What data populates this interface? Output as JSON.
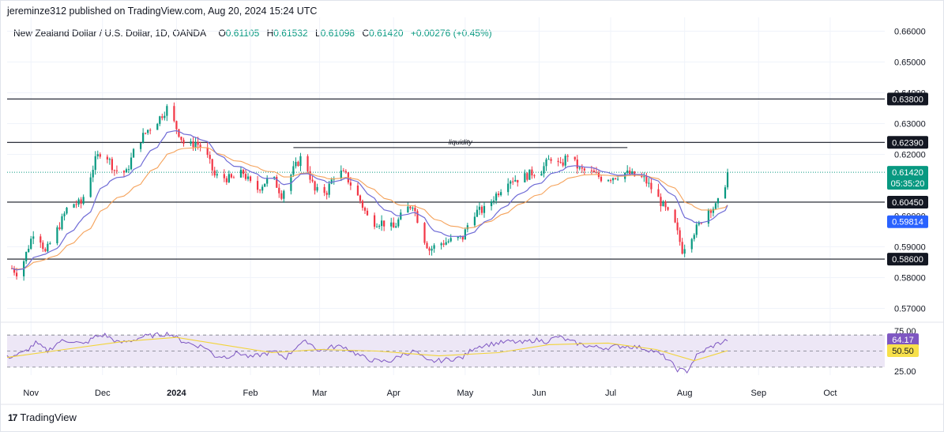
{
  "header": {
    "published_line": "jereminze312 published on TradingView.com, Aug 20, 2024 15:24 UTC",
    "symbol_line": "New Zealand Dollar / U.S. Dollar, 1D, OANDA",
    "ohlc": [
      {
        "k": "O",
        "v": "0.61105"
      },
      {
        "k": "H",
        "v": "0.61532"
      },
      {
        "k": "L",
        "v": "0.61098"
      },
      {
        "k": "C",
        "v": "0.61420"
      }
    ],
    "change": "+0.00276 (+0.45%)"
  },
  "footer": {
    "brand": "TradingView",
    "logo_text": "17"
  },
  "colors": {
    "bull": "#089981",
    "bear": "#f23645",
    "ema_fast": "#6f6bd6",
    "ema_slow": "#f5a25a",
    "rsi_line": "#7e57c2",
    "rsi_ma": "#f2d43a",
    "rsi_band": "#ede7f6"
  },
  "chart_data": {
    "type": "candlestick",
    "price_axis": {
      "ticks": [
        "0.66000",
        "0.65000",
        "0.64000",
        "0.63000",
        "0.62000",
        "0.59000",
        "0.58000",
        "0.57000"
      ],
      "range": [
        0.5655,
        0.6645
      ]
    },
    "time_axis": {
      "labels": [
        "Nov",
        "Dec",
        "2024",
        "Feb",
        "Mar",
        "Apr",
        "May",
        "Jun",
        "Jul",
        "Aug",
        "Sep",
        "Oct"
      ]
    },
    "horizontal_levels": [
      {
        "price": 0.638,
        "label": "0.63800"
      },
      {
        "price": 0.6239,
        "label": "0.62390"
      },
      {
        "price": 0.6045,
        "label": "0.60450"
      },
      {
        "price": 0.586,
        "label": "0.58600"
      }
    ],
    "annotations": [
      {
        "text": "liquidity",
        "price": 0.6222,
        "from": "Feb 19",
        "to": "Jul 8"
      }
    ],
    "last_price": {
      "value": "0.61420",
      "countdown": "05:35:20"
    },
    "ema_label": "0.59814",
    "hidden_tick": "0.60000",
    "close_path": [
      [
        "Oct 24",
        0.583
      ],
      [
        "Oct 27",
        0.581
      ],
      [
        "Nov 3",
        0.597
      ],
      [
        "Nov 7",
        0.588
      ],
      [
        "Nov 13",
        0.597
      ],
      [
        "Nov 17",
        0.604
      ],
      [
        "Nov 22",
        0.604
      ],
      [
        "Nov 28",
        0.618
      ],
      [
        "Dec 1",
        0.622
      ],
      [
        "Dec 6",
        0.615
      ],
      [
        "Dec 11",
        0.614
      ],
      [
        "Dec 15",
        0.623
      ],
      [
        "Dec 20",
        0.628
      ],
      [
        "Dec 24",
        0.631
      ],
      [
        "Dec 28",
        0.635
      ],
      [
        "Jan 2",
        0.627
      ],
      [
        "Jan 5",
        0.622
      ],
      [
        "Jan 9",
        0.624
      ],
      [
        "Jan 13",
        0.621
      ],
      [
        "Jan 17",
        0.613
      ],
      [
        "Jan 24",
        0.612
      ],
      [
        "Jan 29",
        0.614
      ],
      [
        "Feb 3",
        0.608
      ],
      [
        "Feb 7",
        0.611
      ],
      [
        "Feb 10",
        0.613
      ],
      [
        "Feb 14",
        0.607
      ],
      [
        "Feb 19",
        0.615
      ],
      [
        "Feb 23",
        0.62
      ],
      [
        "Feb 28",
        0.608
      ],
      [
        "Mar 4",
        0.608
      ],
      [
        "Mar 8",
        0.615
      ],
      [
        "Mar 12",
        0.613
      ],
      [
        "Mar 18",
        0.605
      ],
      [
        "Mar 22",
        0.598
      ],
      [
        "Mar 27",
        0.598
      ],
      [
        "Apr 1",
        0.596
      ],
      [
        "Apr 5",
        0.601
      ],
      [
        "Apr 9",
        0.604
      ],
      [
        "Apr 13",
        0.594
      ],
      [
        "Apr 16",
        0.589
      ],
      [
        "Apr 20",
        0.591
      ],
      [
        "Apr 25",
        0.592
      ],
      [
        "Apr 30",
        0.593
      ],
      [
        "May 4",
        0.601
      ],
      [
        "May 9",
        0.602
      ],
      [
        "May 14",
        0.607
      ],
      [
        "May 19",
        0.612
      ],
      [
        "May 24",
        0.612
      ],
      [
        "May 29",
        0.614
      ],
      [
        "Jun 2",
        0.615
      ],
      [
        "Jun 6",
        0.619
      ],
      [
        "Jun 10",
        0.616
      ],
      [
        "Jun 13",
        0.62
      ],
      [
        "Jun 18",
        0.615
      ],
      [
        "Jun 23",
        0.614
      ],
      [
        "Jun 28",
        0.612
      ],
      [
        "Jul 3",
        0.613
      ],
      [
        "Jul 7",
        0.614
      ],
      [
        "Jul 11",
        0.613
      ],
      [
        "Jul 15",
        0.612
      ],
      [
        "Jul 19",
        0.608
      ],
      [
        "Jul 24",
        0.602
      ],
      [
        "Jul 28",
        0.597
      ],
      [
        "Jul 31",
        0.589
      ],
      [
        "Aug 3",
        0.593
      ],
      [
        "Aug 7",
        0.597
      ],
      [
        "Aug 10",
        0.602
      ],
      [
        "Aug 14",
        0.603
      ],
      [
        "Aug 17",
        0.607
      ],
      [
        "Aug 19",
        0.6142
      ]
    ],
    "rsi": {
      "value_label": "64.17",
      "ma_label": "50.50",
      "axis_labels": [
        "75.00",
        "25.00"
      ],
      "range": [
        20,
        82
      ],
      "band": [
        70,
        30
      ],
      "path": [
        [
          "Oct 22",
          42
        ],
        [
          "Oct 29",
          48
        ],
        [
          "Nov 3",
          60
        ],
        [
          "Nov 8",
          50
        ],
        [
          "Nov 13",
          62
        ],
        [
          "Nov 18",
          63
        ],
        [
          "Nov 23",
          58
        ],
        [
          "Nov 28",
          68
        ],
        [
          "Dec 2",
          70
        ],
        [
          "Dec 8",
          60
        ],
        [
          "Dec 13",
          63
        ],
        [
          "Dec 18",
          68
        ],
        [
          "Dec 24",
          70
        ],
        [
          "Dec 29",
          72
        ],
        [
          "Jan 3",
          63
        ],
        [
          "Jan 8",
          58
        ],
        [
          "Jan 13",
          55
        ],
        [
          "Jan 17",
          44
        ],
        [
          "Jan 22",
          43
        ],
        [
          "Jan 27",
          48
        ],
        [
          "Feb 1",
          42
        ],
        [
          "Feb 6",
          46
        ],
        [
          "Feb 11",
          49
        ],
        [
          "Feb 16",
          42
        ],
        [
          "Feb 21",
          58
        ],
        [
          "Feb 25",
          62
        ],
        [
          "Mar 1",
          50
        ],
        [
          "Mar 6",
          55
        ],
        [
          "Mar 11",
          56
        ],
        [
          "Mar 16",
          47
        ],
        [
          "Mar 21",
          40
        ],
        [
          "Mar 26",
          37
        ],
        [
          "Mar 31",
          38
        ],
        [
          "Apr 5",
          46
        ],
        [
          "Apr 10",
          50
        ],
        [
          "Apr 15",
          37
        ],
        [
          "Apr 20",
          38
        ],
        [
          "Apr 25",
          40
        ],
        [
          "Apr 30",
          42
        ],
        [
          "May 5",
          55
        ],
        [
          "May 10",
          58
        ],
        [
          "May 15",
          60
        ],
        [
          "May 20",
          62
        ],
        [
          "May 25",
          60
        ],
        [
          "May 30",
          64
        ],
        [
          "Jun 4",
          62
        ],
        [
          "Jun 9",
          68
        ],
        [
          "Jun 14",
          62
        ],
        [
          "Jun 19",
          58
        ],
        [
          "Jun 24",
          55
        ],
        [
          "Jun 29",
          54
        ],
        [
          "Jul 4",
          56
        ],
        [
          "Jul 9",
          56
        ],
        [
          "Jul 14",
          54
        ],
        [
          "Jul 19",
          50
        ],
        [
          "Jul 24",
          42
        ],
        [
          "Jul 29",
          27
        ],
        [
          "Aug 2",
          25
        ],
        [
          "Aug 6",
          44
        ],
        [
          "Aug 10",
          52
        ],
        [
          "Aug 14",
          58
        ],
        [
          "Aug 19",
          64
        ]
      ],
      "ma_path": [
        [
          "Oct 22",
          42
        ],
        [
          "Nov 15",
          52
        ],
        [
          "Dec 10",
          62
        ],
        [
          "Jan 1",
          67
        ],
        [
          "Jan 20",
          58
        ],
        [
          "Feb 10",
          48
        ],
        [
          "Mar 1",
          52
        ],
        [
          "Mar 25",
          50
        ],
        [
          "Apr 20",
          44
        ],
        [
          "May 15",
          48
        ],
        [
          "Jun 5",
          58
        ],
        [
          "Jun 30",
          60
        ],
        [
          "Jul 20",
          52
        ],
        [
          "Aug 5",
          38
        ],
        [
          "Aug 19",
          50.5
        ]
      ]
    }
  }
}
